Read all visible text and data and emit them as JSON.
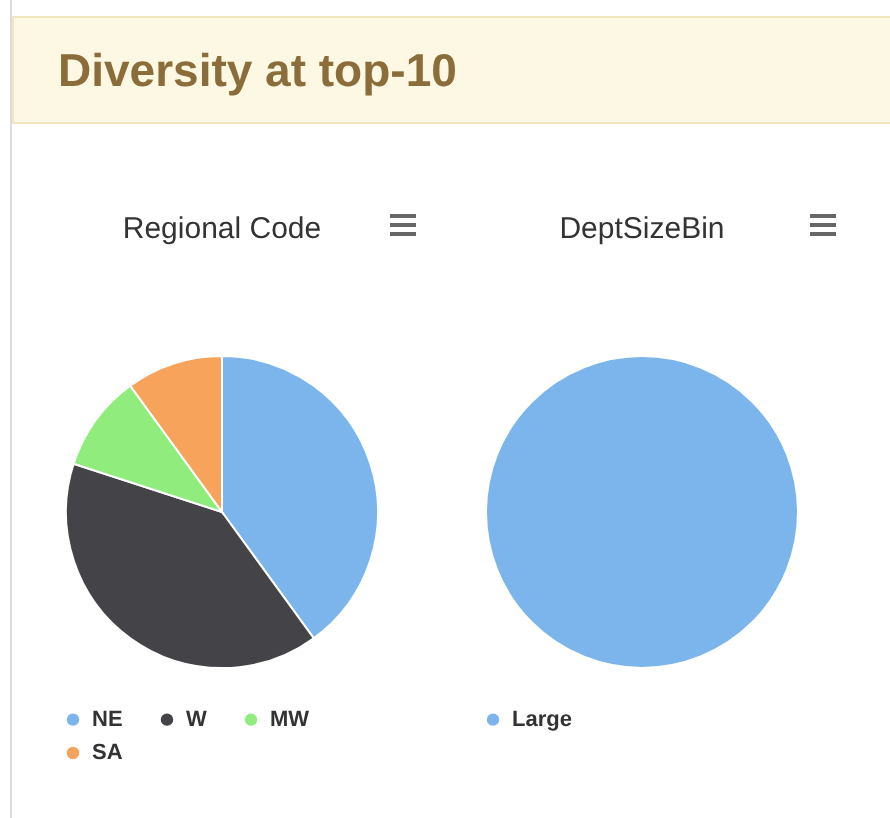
{
  "chart_data": [
    {
      "type": "other",
      "title": "Diversity at top-10"
    },
    {
      "type": "pie",
      "title": "Regional Code",
      "categories": [
        "NE",
        "W",
        "MW",
        "SA"
      ],
      "values": [
        40,
        40,
        10,
        10
      ],
      "colors": [
        "#7cb5ec",
        "#434348",
        "#90ed7d",
        "#f7a35c"
      ],
      "legend": "bottom"
    },
    {
      "type": "pie",
      "title": "DeptSizeBin",
      "categories": [
        "Large"
      ],
      "values": [
        100
      ],
      "colors": [
        "#7cb5ec"
      ],
      "legend": "bottom"
    }
  ]
}
